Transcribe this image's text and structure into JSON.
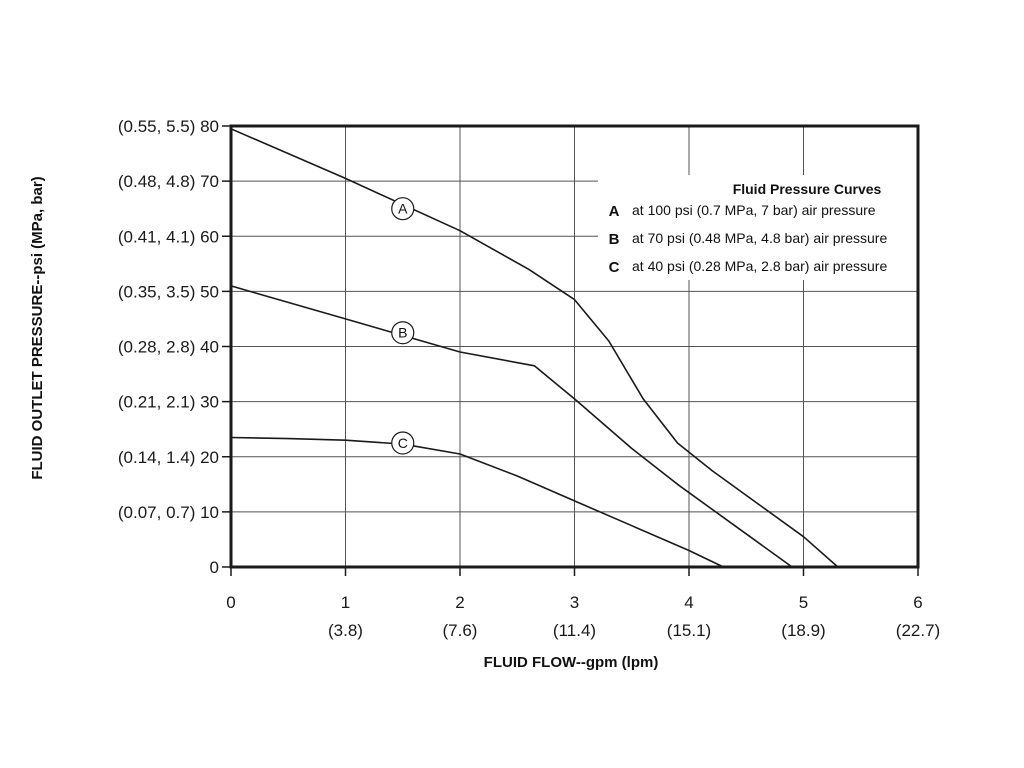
{
  "chart_data": {
    "type": "line",
    "xlabel": "FLUID FLOW--gpm (lpm)",
    "ylabel": "FLUID OUTLET PRESSURE--psi (MPa, bar)",
    "xlim": [
      0,
      6
    ],
    "ylim": [
      0,
      80
    ],
    "grid": true,
    "x_ticks": [
      {
        "value": 0,
        "label": "0",
        "sublabel": ""
      },
      {
        "value": 1,
        "label": "1",
        "sublabel": "(3.8)"
      },
      {
        "value": 2,
        "label": "2",
        "sublabel": "(7.6)"
      },
      {
        "value": 3,
        "label": "3",
        "sublabel": "(11.4)"
      },
      {
        "value": 4,
        "label": "4",
        "sublabel": "(15.1)"
      },
      {
        "value": 5,
        "label": "5",
        "sublabel": "(18.9)"
      },
      {
        "value": 6,
        "label": "6",
        "sublabel": "(22.7)"
      }
    ],
    "y_ticks": [
      {
        "value": 0,
        "label": "0"
      },
      {
        "value": 10,
        "label": "(0.07, 0.7) 10"
      },
      {
        "value": 20,
        "label": "(0.14, 1.4) 20"
      },
      {
        "value": 30,
        "label": "(0.21, 2.1) 30"
      },
      {
        "value": 40,
        "label": "(0.28, 2.8) 40"
      },
      {
        "value": 50,
        "label": "(0.35, 3.5) 50"
      },
      {
        "value": 60,
        "label": "(0.41, 4.1) 60"
      },
      {
        "value": 70,
        "label": "(0.48, 4.8) 70"
      },
      {
        "value": 80,
        "label": "(0.55, 5.5) 80"
      }
    ],
    "legend": {
      "title": "Fluid Pressure Curves",
      "placement": "top-right",
      "entries": [
        {
          "key": "A",
          "text": "at 100 psi (0.7 MPa, 7 bar) air pressure"
        },
        {
          "key": "B",
          "text": "at 70 psi (0.48 MPa, 4.8 bar) air pressure"
        },
        {
          "key": "C",
          "text": "at 40 psi (0.28 MPa, 2.8 bar) air pressure"
        }
      ]
    },
    "series": [
      {
        "name": "A",
        "label_at": [
          1.5,
          65
        ],
        "x": [
          0,
          1.0,
          2.0,
          2.6,
          3.0,
          3.3,
          3.6,
          3.9,
          4.2,
          4.6,
          5.0,
          5.3
        ],
        "y": [
          79.5,
          70.5,
          61,
          54,
          48.5,
          41,
          30.5,
          22.5,
          17.5,
          11.5,
          5.5,
          0
        ]
      },
      {
        "name": "B",
        "label_at": [
          1.5,
          42.5
        ],
        "x": [
          0,
          1.0,
          2.0,
          2.65,
          3.0,
          3.5,
          3.9,
          4.4,
          4.9
        ],
        "y": [
          51,
          45,
          39,
          36.5,
          30.5,
          21.5,
          15,
          7.5,
          0
        ]
      },
      {
        "name": "C",
        "label_at": [
          1.5,
          22.5
        ],
        "x": [
          0,
          0.5,
          1.0,
          1.5,
          2.0,
          2.5,
          3.0,
          3.5,
          4.0,
          4.3
        ],
        "y": [
          23.5,
          23.3,
          23.0,
          22.3,
          20.5,
          16.5,
          12,
          7.5,
          3,
          0
        ]
      }
    ]
  }
}
